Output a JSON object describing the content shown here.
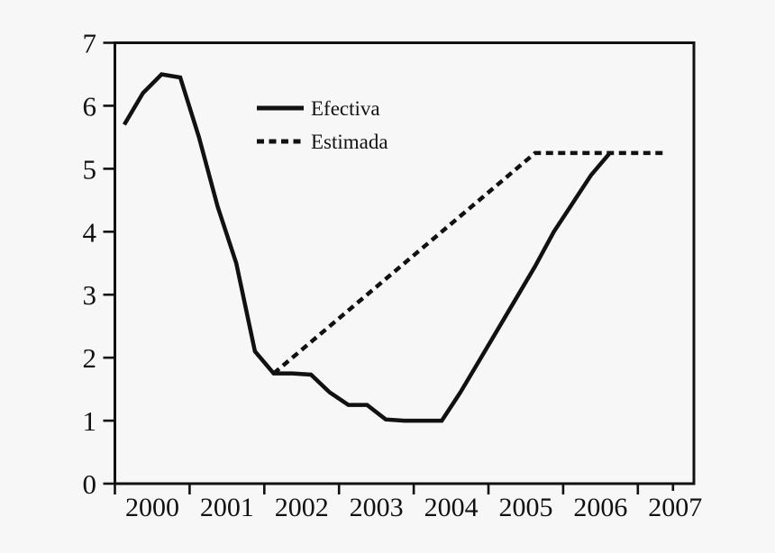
{
  "figure": {
    "background_color": "#f7f7f7",
    "line_color": "#111111"
  },
  "chart_data": {
    "type": "line",
    "title": "",
    "xlabel": "",
    "ylabel": "",
    "xlim": [
      2000,
      2007.75
    ],
    "ylim": [
      0,
      7
    ],
    "grid": false,
    "legend_position": "upper-left-inside",
    "x_ticks": [
      2000,
      2001,
      2002,
      2003,
      2004,
      2005,
      2006,
      2007
    ],
    "x_minor_tick": 2007.47,
    "x_tick_labels": [
      "2000",
      "2001",
      "2002",
      "2003",
      "2004",
      "2005",
      "2006",
      "2007"
    ],
    "y_ticks": [
      0,
      1,
      2,
      3,
      4,
      5,
      6,
      7
    ],
    "y_tick_labels": [
      "0",
      "1",
      "2",
      "3",
      "4",
      "5",
      "6",
      "7"
    ],
    "series": [
      {
        "name": "Efectiva",
        "style": "solid",
        "x": [
          2000.125,
          2000.375,
          2000.625,
          2000.875,
          2001.125,
          2001.375,
          2001.625,
          2001.875,
          2002.125,
          2002.375,
          2002.625,
          2002.875,
          2003.125,
          2003.375,
          2003.625,
          2003.875,
          2004.125,
          2004.375,
          2004.625,
          2004.875,
          2005.125,
          2005.375,
          2005.625,
          2005.875,
          2006.125,
          2006.375,
          2006.625
        ],
        "values": [
          5.7,
          6.2,
          6.5,
          6.45,
          5.5,
          4.4,
          3.5,
          2.1,
          1.75,
          1.75,
          1.73,
          1.45,
          1.25,
          1.25,
          1.02,
          1.0,
          1.0,
          1.0,
          1.45,
          1.95,
          2.45,
          2.95,
          3.45,
          4.0,
          4.45,
          4.9,
          5.25
        ]
      },
      {
        "name": "Estimada",
        "style": "dashed",
        "x": [
          2002.125,
          2005.625,
          2007.375
        ],
        "values": [
          1.75,
          5.25,
          5.25
        ]
      }
    ]
  }
}
